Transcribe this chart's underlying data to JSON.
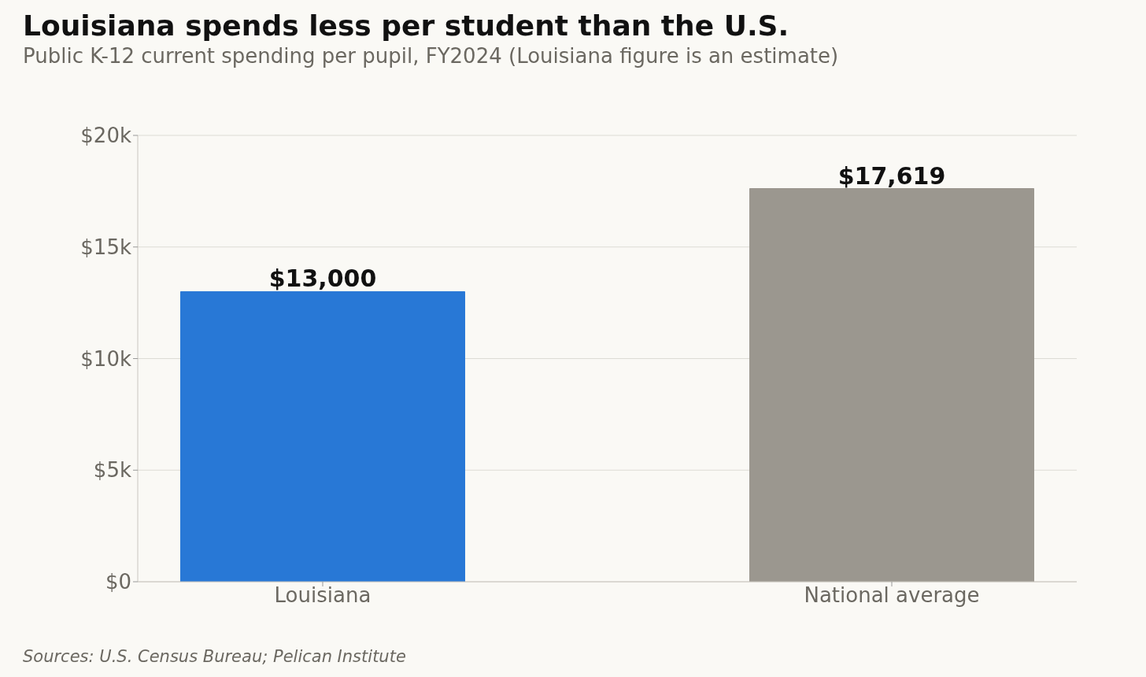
{
  "chart_data": {
    "type": "bar",
    "title": "Louisiana spends less per student than the U.S.",
    "subtitle": "Public K-12 current spending per pupil, FY2024 (Louisiana figure is an estimate)",
    "categories": [
      "Louisiana",
      "National average"
    ],
    "values": [
      13000,
      17619
    ],
    "colors": [
      "#2878d6",
      "#9b978f"
    ],
    "value_labels": [
      "$13,000",
      "$17,619"
    ],
    "ylim": [
      0,
      20000
    ],
    "yticks": [
      {
        "value": 0,
        "label": "$0"
      },
      {
        "value": 5000,
        "label": "$5k"
      },
      {
        "value": 10000,
        "label": "$10k"
      },
      {
        "value": 15000,
        "label": "$15k"
      },
      {
        "value": 20000,
        "label": "$20k"
      }
    ],
    "grid": "y",
    "annotations": [
      "Sources: U.S. Census Bureau; Pelican Institute"
    ]
  }
}
